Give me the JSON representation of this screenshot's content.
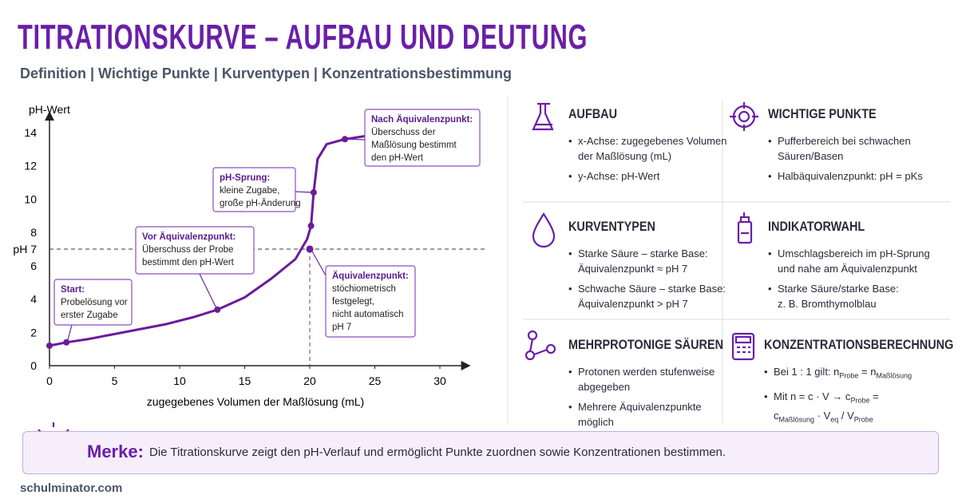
{
  "header": {
    "title": "TITRATIONSKURVE – AUFBAU UND DEUTUNG",
    "subtitle": "Definition | Wichtige Punkte | Kurventypen | Konzentrationsbestimmung"
  },
  "chart_data": {
    "type": "line",
    "y_label": "pH-Wert",
    "x_label": "zugegebenes Volumen der Maßlösung (mL)",
    "color": "#6a1b9a",
    "x": [
      0,
      1.3,
      3,
      5,
      7,
      9,
      11,
      12.9,
      15,
      17,
      18.9,
      19.8,
      20.1,
      20.3,
      20.6,
      21.3,
      22.7,
      24.4
    ],
    "values": [
      1.2,
      1.4,
      1.6,
      1.9,
      2.2,
      2.5,
      2.9,
      3.36,
      4.1,
      5.2,
      6.4,
      7.6,
      8.4,
      10.4,
      12.4,
      13.3,
      13.6,
      13.8
    ],
    "points": {
      "x": [
        0,
        1.3,
        12.9,
        20.1,
        20.3,
        22.7
      ],
      "y": [
        1.2,
        1.4,
        3.36,
        8.4,
        10.4,
        13.6
      ]
    },
    "equivalence_point": {
      "x": 20,
      "y": 7
    },
    "hline": {
      "value": 7,
      "label": "pH 7"
    },
    "vline": 20,
    "xlim": [
      0,
      32
    ],
    "ylim": [
      0,
      15
    ],
    "xticks": [
      0,
      5,
      10,
      15,
      20,
      25,
      30
    ],
    "yticks": [
      0,
      2,
      4,
      6,
      8,
      10,
      12,
      14
    ],
    "annotations": [
      {
        "title": "Start:",
        "lines": [
          "Probelösung vor",
          "erster Zugabe"
        ]
      },
      {
        "title": "Vor Äquivalenzpunkt:",
        "lines": [
          "Überschuss der Probe",
          "bestimmt den pH-Wert"
        ]
      },
      {
        "title": "pH-Sprung:",
        "lines": [
          "kleine Zugabe,",
          "große pH-Änderung"
        ]
      },
      {
        "title": "Äquivalenzpunkt:",
        "lines": [
          "stöchiometrisch",
          "festgelegt,",
          "nicht automatisch",
          "pH 7"
        ]
      },
      {
        "title": "Nach Äquivalenzpunkt:",
        "lines": [
          "Überschuss der",
          "Maßlösung bestimmt",
          "den pH-Wert"
        ]
      }
    ]
  },
  "panels": [
    {
      "title": "AUFBAU",
      "bullets": [
        [
          "x-Achse: zugegebenes Volumen",
          "der Maßlösung (mL)"
        ],
        [
          "y-Achse: pH-Wert"
        ]
      ]
    },
    {
      "title": "WICHTIGE PUNKTE",
      "bullets": [
        [
          "Pufferbereich bei schwachen",
          "Säuren/Basen"
        ],
        [
          "Halbäquivalenzpunkt: pH = pKs"
        ]
      ]
    },
    {
      "title": "KURVENTYPEN",
      "bullets": [
        [
          "Starke Säure – starke Base:",
          "Äquivalenzpunkt ≈ pH 7"
        ],
        [
          "Schwache Säure – starke Base:",
          "Äquivalenzpunkt > pH 7"
        ]
      ]
    },
    {
      "title": "INDIKATORWAHL",
      "bullets": [
        [
          "Umschlagsbereich im pH-Sprung",
          "und nahe am Äquivalenzpunkt"
        ],
        [
          "Starke Säure/starke Base:",
          "z. B. Bromthymolblau"
        ]
      ]
    },
    {
      "title": "MEHRPROTONIGE SÄUREN",
      "bullets": [
        [
          "Protonen werden stufenweise",
          "abgegeben"
        ],
        [
          "Mehrere Äquivalenzpunkte",
          "möglich"
        ]
      ]
    },
    {
      "title": "KONZENTRATIONSBERECHNUNG",
      "bullets": [
        [
          [
            "Bei 1 : 1 gilt: n",
            {
              "sub": "Probe"
            },
            " = n",
            {
              "sub": "Maßlösung"
            }
          ]
        ],
        [
          [
            "Mit n = c · V → c",
            {
              "sub": "Probe"
            },
            " ="
          ],
          [
            "c",
            {
              "sub": "Maßlösung"
            },
            " · V",
            {
              "sub": "eq"
            },
            " / V",
            {
              "sub": "Probe"
            }
          ]
        ]
      ]
    }
  ],
  "note": {
    "label": "Merke:",
    "text": "Die Titrationskurve zeigt den pH-Verlauf und ermöglicht Punkte zuordnen sowie Konzentrationen bestimmen."
  },
  "footer": "schulminator.com"
}
